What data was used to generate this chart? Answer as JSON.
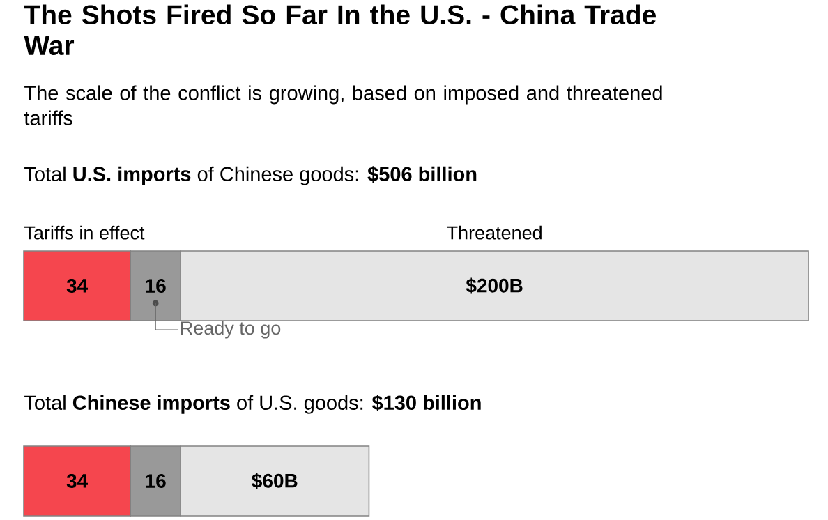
{
  "chart_data": [
    {
      "type": "bar",
      "orientation": "horizontal",
      "stacked": true,
      "title": "The Shots Fired So Far In the U.S. - China Trade War",
      "subtitle": "The scale of the conflict is growing, based on imposed and threatened tariffs",
      "xlabel": "Total **U.S. imports** of Chinese goods: **$506 billion**",
      "categories": [
        null
      ],
      "series": [
        {
          "color": "#f5464e",
          "values": [
            34
          ],
          "value_labels": [
            "34"
          ]
        },
        {
          "color": "#999999",
          "values": [
            16
          ],
          "value_labels": [
            "16"
          ]
        },
        {
          "color": "#e5e5e5",
          "values": [
            200
          ],
          "value_labels": [
            "$200B"
          ]
        }
      ],
      "annotations": [
        "Tariffs in effect",
        "Threatened",
        "Ready to go"
      ]
    },
    {
      "type": "bar",
      "orientation": "horizontal",
      "stacked": true,
      "xlabel": "Total **Chinese imports** of U.S. goods: **$130 billion**",
      "categories": [
        null
      ],
      "series": [
        {
          "color": "#f5464e",
          "values": [
            34
          ],
          "value_labels": [
            "34"
          ]
        },
        {
          "color": "#999999",
          "values": [
            16
          ],
          "value_labels": [
            "16"
          ]
        },
        {
          "color": "#e5e5e5",
          "values": [
            60
          ],
          "value_labels": [
            "$60B"
          ]
        }
      ]
    }
  ]
}
